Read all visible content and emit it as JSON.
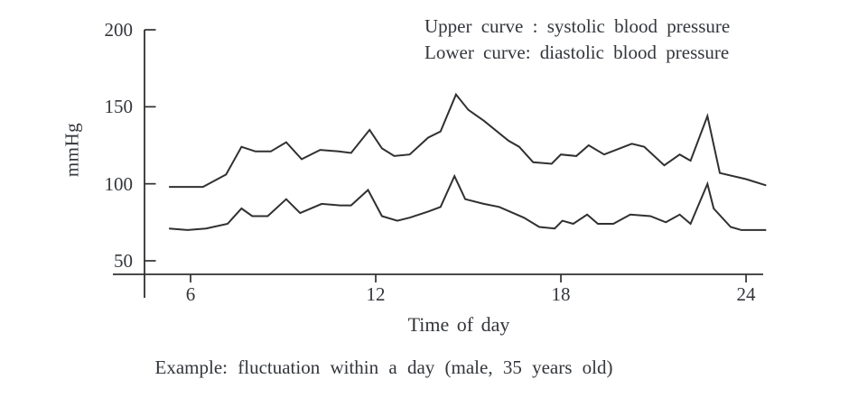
{
  "legend": {
    "line1": "Upper curve : systolic blood pressure",
    "line2": "Lower curve: diastolic blood pressure"
  },
  "caption": "Example: fluctuation within a day (male, 35 years old)",
  "colors": {
    "line": "#303030",
    "text": "#33363b",
    "background": "#ffffff"
  },
  "chart_data": {
    "type": "line",
    "title": "",
    "xlabel": "Time of day",
    "ylabel": "mmHg",
    "x_ticks": [
      6,
      12,
      18,
      24
    ],
    "y_ticks": [
      200,
      150,
      100,
      50
    ],
    "xlim": [
      4.6,
      25.1
    ],
    "ylim": [
      50,
      200
    ],
    "grid": false,
    "legend_position": "top-right",
    "series": [
      {
        "name": "systolic blood pressure",
        "points": [
          [
            5.3,
            98
          ],
          [
            6.4,
            98
          ],
          [
            7.15,
            106
          ],
          [
            7.65,
            124
          ],
          [
            8.1,
            121
          ],
          [
            8.6,
            121
          ],
          [
            9.1,
            127
          ],
          [
            9.6,
            116
          ],
          [
            10.2,
            122
          ],
          [
            10.8,
            121
          ],
          [
            11.2,
            120
          ],
          [
            11.8,
            135
          ],
          [
            12.2,
            123
          ],
          [
            12.6,
            118
          ],
          [
            13.1,
            119
          ],
          [
            13.7,
            130
          ],
          [
            14.1,
            134
          ],
          [
            14.6,
            158
          ],
          [
            15.0,
            148
          ],
          [
            15.5,
            141
          ],
          [
            16.3,
            128
          ],
          [
            16.65,
            124
          ],
          [
            17.1,
            114
          ],
          [
            17.7,
            113
          ],
          [
            18.0,
            119
          ],
          [
            18.5,
            118
          ],
          [
            18.9,
            125
          ],
          [
            19.4,
            119
          ],
          [
            20.3,
            126
          ],
          [
            20.7,
            124
          ],
          [
            21.35,
            112
          ],
          [
            21.85,
            119
          ],
          [
            22.2,
            115
          ],
          [
            22.75,
            144
          ],
          [
            23.15,
            107
          ],
          [
            24.0,
            103
          ],
          [
            24.65,
            99
          ]
        ]
      },
      {
        "name": "diastolic blood pressure",
        "points": [
          [
            5.3,
            71
          ],
          [
            5.9,
            70
          ],
          [
            6.5,
            71
          ],
          [
            7.2,
            74
          ],
          [
            7.65,
            84
          ],
          [
            8.0,
            79
          ],
          [
            8.5,
            79
          ],
          [
            9.1,
            90
          ],
          [
            9.55,
            81
          ],
          [
            10.25,
            87
          ],
          [
            10.85,
            86
          ],
          [
            11.2,
            86
          ],
          [
            11.75,
            96
          ],
          [
            12.2,
            79
          ],
          [
            12.7,
            76
          ],
          [
            13.1,
            78
          ],
          [
            13.7,
            82
          ],
          [
            14.1,
            85
          ],
          [
            14.55,
            105
          ],
          [
            14.9,
            90
          ],
          [
            15.5,
            87
          ],
          [
            16.0,
            85
          ],
          [
            16.8,
            78
          ],
          [
            17.3,
            72
          ],
          [
            17.8,
            71
          ],
          [
            18.05,
            76
          ],
          [
            18.4,
            74
          ],
          [
            18.85,
            80
          ],
          [
            19.2,
            74
          ],
          [
            19.7,
            74
          ],
          [
            20.25,
            80
          ],
          [
            20.9,
            79
          ],
          [
            21.4,
            75
          ],
          [
            21.85,
            80
          ],
          [
            22.2,
            74
          ],
          [
            22.75,
            100
          ],
          [
            22.95,
            84
          ],
          [
            23.5,
            72
          ],
          [
            23.85,
            70
          ],
          [
            24.65,
            70
          ]
        ]
      }
    ]
  }
}
